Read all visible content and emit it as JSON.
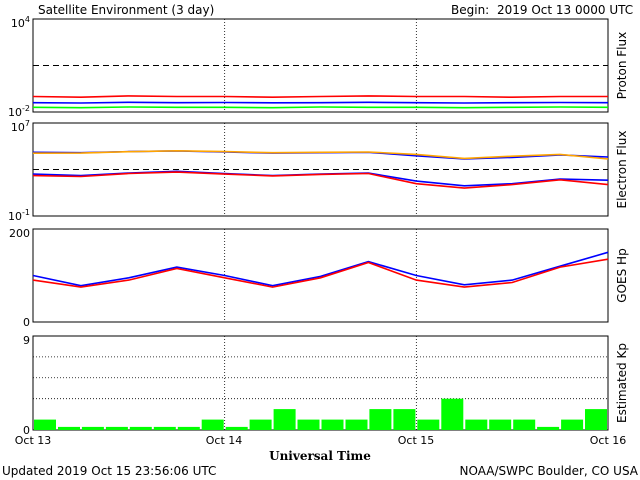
{
  "header": {
    "title": "Satellite Environment (3 day)",
    "begin_label": "Begin:",
    "begin_value": "2019 Oct 13 0000 UTC"
  },
  "footer": {
    "updated": "Updated 2019 Oct 15 23:56:06 UTC",
    "credit": "NOAA/SWPC Boulder, CO USA",
    "xlabel": "Universal Time"
  },
  "x_ticks": [
    "Oct 13",
    "Oct 14",
    "Oct 15",
    "Oct 16"
  ],
  "colors": {
    "red": "#ff0000",
    "blue": "#0000ff",
    "green": "#00ff00",
    "orange": "#ffa500"
  },
  "chart_data": [
    {
      "type": "line",
      "ylabel": "Proton Flux",
      "scale": "log",
      "ytick_labels": [
        {
          "base": "10",
          "exp": "4"
        },
        {
          "base": "10",
          "exp": "-2"
        }
      ],
      "ylim": [
        0.01,
        10000
      ],
      "threshold": 10,
      "x": [
        0,
        0.25,
        0.5,
        0.75,
        1,
        1.25,
        1.5,
        1.75,
        2,
        2.25,
        2.5,
        2.75,
        3
      ],
      "series": [
        {
          "color": "red",
          "values": [
            0.1,
            0.09,
            0.11,
            0.1,
            0.1,
            0.09,
            0.1,
            0.11,
            0.1,
            0.1,
            0.09,
            0.1,
            0.1
          ]
        },
        {
          "color": "blue",
          "values": [
            0.04,
            0.038,
            0.042,
            0.04,
            0.041,
            0.039,
            0.04,
            0.042,
            0.04,
            0.038,
            0.04,
            0.041,
            0.04
          ]
        },
        {
          "color": "green",
          "values": [
            0.02,
            0.019,
            0.021,
            0.02,
            0.02,
            0.019,
            0.021,
            0.02,
            0.02,
            0.019,
            0.02,
            0.021,
            0.02
          ]
        }
      ]
    },
    {
      "type": "line",
      "ylabel": "Electron Flux",
      "scale": "log",
      "ytick_labels": [
        {
          "base": "10",
          "exp": "7"
        },
        {
          "base": "10",
          "exp": "-1"
        }
      ],
      "ylim": [
        0.1,
        10000000
      ],
      "threshold": 1000,
      "x": [
        0,
        0.25,
        0.5,
        0.75,
        1,
        1.25,
        1.5,
        1.75,
        2,
        2.25,
        2.5,
        2.75,
        3
      ],
      "series": [
        {
          "color": "blue",
          "values": [
            30000,
            28000,
            35000,
            40000,
            32000,
            26000,
            28000,
            30000,
            15000,
            8000,
            11000,
            18000,
            12000
          ]
        },
        {
          "color": "orange",
          "values": [
            25000,
            26000,
            34000,
            41000,
            35000,
            28000,
            30000,
            32000,
            20000,
            9000,
            14000,
            20000,
            8000
          ]
        },
        {
          "color": "blue",
          "values": [
            400,
            300,
            500,
            700,
            450,
            300,
            400,
            500,
            100,
            40,
            60,
            150,
            120
          ]
        },
        {
          "color": "red",
          "values": [
            300,
            250,
            450,
            600,
            400,
            280,
            380,
            450,
            60,
            25,
            50,
            130,
            50
          ]
        }
      ]
    },
    {
      "type": "line",
      "ylabel": "GOES Hp",
      "scale": "linear",
      "ytick_labels": [
        "200",
        "0"
      ],
      "ylim": [
        0,
        200
      ],
      "x": [
        0,
        0.25,
        0.5,
        0.75,
        1,
        1.25,
        1.5,
        1.75,
        2,
        2.25,
        2.5,
        2.75,
        3
      ],
      "series": [
        {
          "color": "blue",
          "values": [
            100,
            78,
            95,
            118,
            100,
            78,
            98,
            130,
            100,
            80,
            90,
            120,
            150
          ]
        },
        {
          "color": "red",
          "values": [
            90,
            75,
            90,
            115,
            95,
            75,
            95,
            128,
            90,
            75,
            85,
            118,
            135
          ]
        }
      ]
    },
    {
      "type": "bar",
      "ylabel": "Estimated Kp",
      "ytick_labels": [
        "9",
        "0"
      ],
      "ylim": [
        0,
        9
      ],
      "dotted_levels": [
        3,
        5,
        7
      ],
      "bar_color": "green",
      "values": [
        1,
        0.3,
        0.3,
        0.3,
        0.3,
        0.3,
        0.3,
        1,
        0.3,
        1,
        2,
        1,
        1,
        1,
        2,
        2,
        1,
        3,
        1,
        1,
        1,
        0.3,
        1,
        2
      ]
    }
  ]
}
